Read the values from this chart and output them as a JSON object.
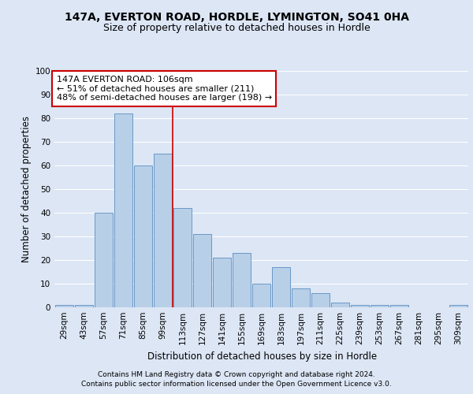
{
  "title": "147A, EVERTON ROAD, HORDLE, LYMINGTON, SO41 0HA",
  "subtitle": "Size of property relative to detached houses in Hordle",
  "xlabel": "Distribution of detached houses by size in Hordle",
  "ylabel": "Number of detached properties",
  "categories": [
    "29sqm",
    "43sqm",
    "57sqm",
    "71sqm",
    "85sqm",
    "99sqm",
    "113sqm",
    "127sqm",
    "141sqm",
    "155sqm",
    "169sqm",
    "183sqm",
    "197sqm",
    "211sqm",
    "225sqm",
    "239sqm",
    "253sqm",
    "267sqm",
    "281sqm",
    "295sqm",
    "309sqm"
  ],
  "values": [
    1,
    1,
    40,
    82,
    60,
    65,
    42,
    31,
    21,
    23,
    10,
    17,
    8,
    6,
    2,
    1,
    1,
    1,
    0,
    0,
    1
  ],
  "bar_color": "#b8cfe8",
  "bar_edge_color": "#5b8dc0",
  "vline_x": 5.5,
  "vline_color": "#cc0000",
  "annotation_text": "147A EVERTON ROAD: 106sqm\n← 51% of detached houses are smaller (211)\n48% of semi-detached houses are larger (198) →",
  "annotation_box_color": "white",
  "annotation_box_edge": "#cc0000",
  "background_color": "#dce6f5",
  "plot_bg_color": "#dce6f5",
  "grid_color": "white",
  "ylim": [
    0,
    100
  ],
  "yticks": [
    0,
    10,
    20,
    30,
    40,
    50,
    60,
    70,
    80,
    90,
    100
  ],
  "footer_line1": "Contains HM Land Registry data © Crown copyright and database right 2024.",
  "footer_line2": "Contains public sector information licensed under the Open Government Licence v3.0.",
  "title_fontsize": 10,
  "subtitle_fontsize": 9,
  "xlabel_fontsize": 8.5,
  "ylabel_fontsize": 8.5,
  "tick_fontsize": 7.5,
  "annotation_fontsize": 8,
  "footer_fontsize": 6.5
}
